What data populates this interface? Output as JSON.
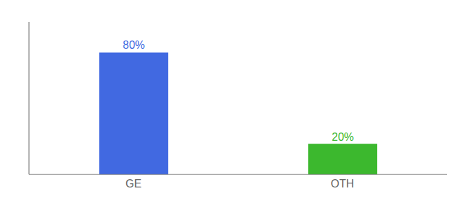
{
  "chart_data": {
    "type": "bar",
    "categories": [
      "GE",
      "OTH"
    ],
    "values": [
      80,
      20
    ],
    "value_labels": [
      "80%",
      "20%"
    ],
    "colors": [
      "#4169e1",
      "#3cb82e"
    ],
    "ylim": [
      0,
      100
    ],
    "data_labels": true,
    "tick_labels": "x",
    "grid": false
  }
}
